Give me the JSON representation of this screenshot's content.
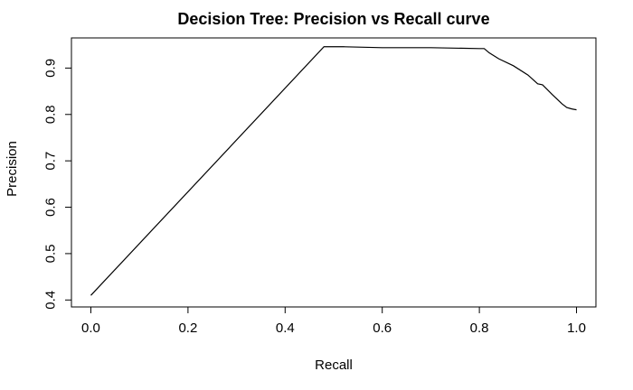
{
  "chart_data": {
    "type": "line",
    "title": "Decision Tree: Precision vs Recall curve",
    "xlabel": "Recall",
    "ylabel": "Precision",
    "xlim": [
      -0.04,
      1.04
    ],
    "ylim": [
      0.385,
      0.965
    ],
    "x_ticks": [
      0.0,
      0.2,
      0.4,
      0.6,
      0.8,
      1.0
    ],
    "x_tick_labels": [
      "0.0",
      "0.2",
      "0.4",
      "0.6",
      "0.8",
      "1.0"
    ],
    "y_ticks": [
      0.4,
      0.5,
      0.6,
      0.7,
      0.8,
      0.9
    ],
    "y_tick_labels": [
      "0.4",
      "0.5",
      "0.6",
      "0.7",
      "0.8",
      "0.9"
    ],
    "grid": false,
    "line_color": "#000000",
    "series": [
      {
        "x": [
          0.0,
          0.48,
          0.52,
          0.6,
          0.7,
          0.8,
          0.81,
          0.82,
          0.84,
          0.87,
          0.9,
          0.92,
          0.93,
          0.95,
          0.97,
          0.98,
          0.99,
          1.0
        ],
        "y": [
          0.41,
          0.946,
          0.946,
          0.944,
          0.944,
          0.942,
          0.942,
          0.933,
          0.92,
          0.905,
          0.885,
          0.866,
          0.864,
          0.843,
          0.823,
          0.815,
          0.812,
          0.81
        ]
      }
    ]
  }
}
